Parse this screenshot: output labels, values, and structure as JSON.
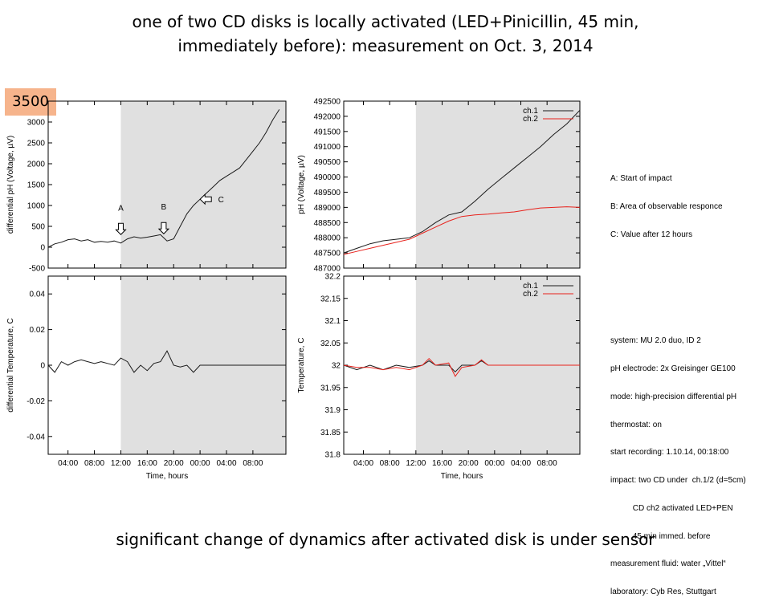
{
  "title": {
    "line1": "one of two CD disks is locally activated (LED+Pinicillin, 45 min,",
    "line2": "immediately before): measurement on Oct. 3, 2014"
  },
  "badge": "3500",
  "caption": "significant change of dynamics after activated disk is under sensor",
  "legend_notes": {
    "impact": [
      "A: Start of impact",
      "B: Area of observable responce",
      "C: Value after 12 hours"
    ],
    "system": [
      "system: MU 2.0 duo, ID 2",
      "pH electrode: 2x Greisinger GE100",
      "mode: high-precision differential pH",
      "thermostat: on",
      "start recording: 1.10.14, 00:18:00",
      "impact: two CD under  ch.1/2 (d=5cm)",
      "          CD ch2 activated LED+PEN",
      "          45 min immed. before",
      "measurement fluid: water „Vittel“",
      "laboratory: Cyb Res, Stuttgart"
    ]
  },
  "colors": {
    "ch1": "#1a1a1a",
    "ch2": "#e8221c",
    "shade": "#e0e0e0",
    "badge": "#f6b48c"
  },
  "chart_data": [
    {
      "type": "line",
      "xlabel": "Time, hours",
      "ylabel": "differential pH (Voltage, µV)",
      "ylim": [
        -500,
        3500
      ],
      "yticks": [
        "-500",
        "0",
        "500",
        "1000",
        "1500",
        "2000",
        "2500",
        "3000"
      ],
      "shaded_from_hour": 11,
      "annotations": [
        {
          "label": "A",
          "x": 11,
          "y": 110
        },
        {
          "label": "B",
          "x": 17.5,
          "y": 130
        },
        {
          "label": "C",
          "x": 23.5,
          "y": 1150
        }
      ],
      "series": [
        {
          "x": [
            0,
            1,
            2,
            3,
            4,
            5,
            6,
            7,
            8,
            9,
            10,
            11,
            12,
            13,
            14,
            15,
            16,
            17,
            18,
            19,
            20,
            21,
            22,
            23,
            24,
            25,
            26,
            27,
            28,
            29,
            30,
            31,
            32,
            33,
            34,
            35
          ],
          "values": [
            0,
            80,
            120,
            180,
            200,
            150,
            180,
            120,
            140,
            120,
            150,
            100,
            200,
            250,
            220,
            240,
            270,
            300,
            150,
            200,
            500,
            800,
            1000,
            1150,
            1300,
            1450,
            1600,
            1700,
            1800,
            1900,
            2100,
            2300,
            2500,
            2750,
            3050,
            3300
          ]
        }
      ]
    },
    {
      "type": "line",
      "xlabel": "Time, hours",
      "ylabel": "pH (Voltage, µV)",
      "ylim": [
        487000,
        492500
      ],
      "yticks": [
        "487000",
        "487500",
        "488000",
        "488500",
        "489000",
        "489500",
        "490000",
        "490500",
        "491000",
        "491500",
        "492000",
        "492500"
      ],
      "shaded_from_hour": 11,
      "legend": "top-right",
      "series": [
        {
          "name": "ch.1",
          "x": [
            0,
            2,
            4,
            6,
            8,
            10,
            12,
            14,
            16,
            18,
            20,
            22,
            24,
            26,
            28,
            30,
            32,
            34,
            36
          ],
          "values": [
            487500,
            487650,
            487800,
            487900,
            487950,
            488000,
            488200,
            488500,
            488750,
            488850,
            489200,
            489600,
            489950,
            490300,
            490650,
            491000,
            491400,
            491750,
            492200
          ]
        },
        {
          "name": "ch.2",
          "x": [
            0,
            2,
            4,
            6,
            8,
            10,
            12,
            14,
            16,
            18,
            20,
            22,
            24,
            26,
            28,
            30,
            32,
            34,
            36
          ],
          "values": [
            487450,
            487550,
            487650,
            487750,
            487850,
            487950,
            488150,
            488350,
            488550,
            488700,
            488750,
            488780,
            488820,
            488850,
            488920,
            488980,
            489000,
            489020,
            489000
          ]
        }
      ]
    },
    {
      "type": "line",
      "xlabel": "Time, hours",
      "ylabel": "differential Temperature, C",
      "ylim": [
        -0.05,
        0.05
      ],
      "yticks": [
        "0.04",
        "0.02",
        "0",
        "-0.02",
        "-0.04"
      ],
      "xticks": [
        "04:00",
        "08:00",
        "12:00",
        "16:00",
        "20:00",
        "00:00",
        "04:00",
        "08:00"
      ],
      "shaded_from_hour": 11,
      "series": [
        {
          "x": [
            0,
            1,
            2,
            3,
            4,
            5,
            6,
            7,
            8,
            9,
            10,
            11,
            12,
            13,
            14,
            15,
            16,
            17,
            18,
            19,
            20,
            21,
            22,
            23,
            24,
            25,
            26,
            27,
            28,
            29,
            30,
            31,
            32,
            33,
            34,
            35,
            36
          ],
          "values": [
            0,
            -0.004,
            0.002,
            0,
            0.002,
            0.003,
            0.002,
            0.001,
            0.002,
            0.001,
            0,
            0.004,
            0.002,
            -0.004,
            0,
            -0.003,
            0.001,
            0.002,
            0.008,
            0,
            -0.001,
            0,
            -0.004,
            0,
            0,
            0,
            0,
            0,
            0,
            0,
            0,
            0,
            0,
            0,
            0,
            0,
            0
          ]
        }
      ]
    },
    {
      "type": "line",
      "xlabel": "Time, hours",
      "ylabel": "Temperature, C",
      "ylim": [
        31.8,
        32.2
      ],
      "yticks": [
        "32.2",
        "32.15",
        "32.1",
        "32.05",
        "32",
        "31.95",
        "31.9",
        "31.85",
        "31.8"
      ],
      "xticks": [
        "04:00",
        "08:00",
        "12:00",
        "16:00",
        "20:00",
        "00:00",
        "04:00",
        "08:00"
      ],
      "shaded_from_hour": 11,
      "legend": "top-right",
      "series": [
        {
          "name": "ch.1",
          "x": [
            0,
            2,
            4,
            6,
            8,
            10,
            12,
            13,
            14,
            16,
            17,
            18,
            20,
            21,
            22,
            24,
            26,
            28,
            30,
            32,
            34,
            36
          ],
          "values": [
            32.0,
            31.99,
            32.0,
            31.99,
            32.0,
            31.995,
            32.0,
            32.01,
            32.0,
            32.0,
            31.985,
            32.0,
            32.0,
            32.01,
            32.0,
            32.0,
            32.0,
            32.0,
            32.0,
            32.0,
            32.0,
            32.0
          ]
        },
        {
          "name": "ch.2",
          "x": [
            0,
            2,
            4,
            6,
            8,
            10,
            12,
            13,
            14,
            16,
            17,
            18,
            20,
            21,
            22,
            24,
            26,
            28,
            30,
            32,
            34,
            36
          ],
          "values": [
            32.0,
            31.995,
            31.995,
            31.99,
            31.995,
            31.99,
            32.0,
            32.015,
            32.0,
            32.005,
            31.975,
            31.995,
            32.0,
            32.012,
            32.0,
            32.0,
            32.0,
            32.0,
            32.0,
            32.0,
            32.0,
            32.0
          ]
        }
      ]
    }
  ]
}
